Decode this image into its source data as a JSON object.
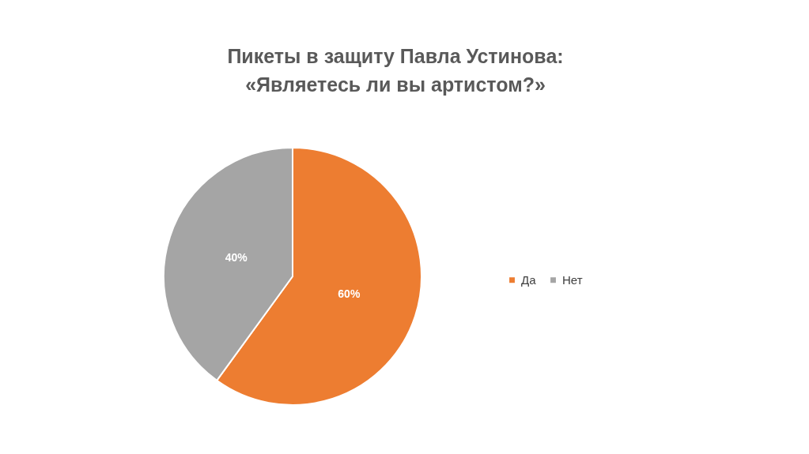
{
  "chart_data": {
    "type": "pie",
    "title": "Пикеты в защиту Павла Устинова:\n«Являетесь ли вы артистом?»",
    "categories": [
      "Да",
      "Нет"
    ],
    "values": [
      60,
      40
    ],
    "colors": [
      "#ed7d31",
      "#a5a5a5"
    ],
    "value_labels": [
      "60%",
      "40%"
    ],
    "legend": "right"
  }
}
